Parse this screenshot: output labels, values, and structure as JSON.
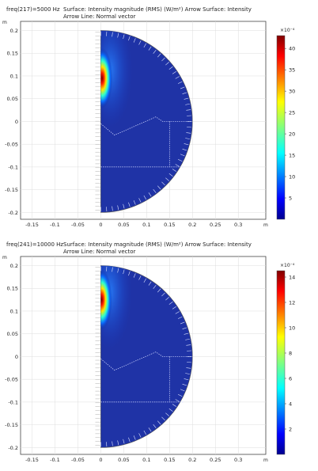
{
  "charts": [
    {
      "freq_label": "freq(217)=5000 Hz",
      "title_line1": "Surface: Intensity magnitude (RMS) (W/m²)  Arrow Surface: Intensity",
      "title_line2": "Arrow Line: Normal vector",
      "axis_unit_y": "m",
      "axis_unit_x": "m",
      "colorbar_exponent": "×10⁻⁴"
    },
    {
      "freq_label": "freq(241)=10000 Hz",
      "title_line1": "Surface: Intensity magnitude (RMS) (W/m²)  Arrow Surface: Intensity",
      "title_line2": "Arrow Line: Normal vector",
      "axis_unit_y": "m",
      "axis_unit_x": "m",
      "colorbar_exponent": "×10⁻⁴"
    }
  ],
  "chart_data": [
    {
      "type": "heatmap",
      "title": "Surface: Intensity magnitude (RMS) (W/m²)  Arrow Surface: Intensity  Arrow Line: Normal vector",
      "frequency": "freq(217)=5000 Hz",
      "xlabel": "m",
      "ylabel": "m",
      "xlim": [
        -0.175,
        0.36
      ],
      "ylim": [
        -0.215,
        0.22
      ],
      "x_ticks": [
        "-0.15",
        "-0.1",
        "-0.05",
        "0",
        "0.05",
        "0.1",
        "0.15",
        "0.2",
        "0.25",
        "0.3"
      ],
      "x_tick_values": [
        -0.15,
        -0.1,
        -0.05,
        0,
        0.05,
        0.1,
        0.15,
        0.2,
        0.25,
        0.3
      ],
      "y_ticks": [
        "0.2",
        "0.15",
        "0.1",
        "0.05",
        "0",
        "-0.05",
        "-0.1",
        "-0.15",
        "-0.2"
      ],
      "y_tick_values": [
        0.2,
        0.15,
        0.1,
        0.05,
        0,
        -0.05,
        -0.1,
        -0.15,
        -0.2
      ],
      "domain_radius": 0.2,
      "hotspot": {
        "x": 0.003,
        "y": 0.095,
        "peak": 43
      },
      "colorbar": {
        "min": 0,
        "max": 43,
        "ticks": [
          "40",
          "35",
          "30",
          "25",
          "20",
          "15",
          "10",
          "5"
        ],
        "tick_values": [
          40,
          35,
          30,
          25,
          20,
          15,
          10,
          5
        ],
        "exponent": "×10⁻⁴"
      },
      "colormap": "jet",
      "grid": true
    },
    {
      "type": "heatmap",
      "title": "Surface: Intensity magnitude (RMS) (W/m²)  Arrow Surface: Intensity  Arrow Line: Normal vector",
      "frequency": "freq(241)=10000 Hz",
      "xlabel": "m",
      "ylabel": "m",
      "xlim": [
        -0.175,
        0.36
      ],
      "ylim": [
        -0.215,
        0.22
      ],
      "x_ticks": [
        "-0.15",
        "-0.1",
        "-0.05",
        "0",
        "0.05",
        "0.1",
        "0.15",
        "0.2",
        "0.25",
        "0.3"
      ],
      "x_tick_values": [
        -0.15,
        -0.1,
        -0.05,
        0,
        0.05,
        0.1,
        0.15,
        0.2,
        0.25,
        0.3
      ],
      "y_ticks": [
        "0.2",
        "0.15",
        "0.1",
        "0.05",
        "0",
        "-0.05",
        "-0.1",
        "-0.15",
        "-0.2"
      ],
      "y_tick_values": [
        0.2,
        0.15,
        0.1,
        0.05,
        0,
        -0.05,
        -0.1,
        -0.15,
        -0.2
      ],
      "domain_radius": 0.2,
      "hotspot": {
        "x": 0.002,
        "y": 0.125,
        "peak": 14.5
      },
      "colorbar": {
        "min": 0,
        "max": 14.5,
        "ticks": [
          "14",
          "12",
          "10",
          "8",
          "6",
          "4",
          "2"
        ],
        "tick_values": [
          14,
          12,
          10,
          8,
          6,
          4,
          2
        ],
        "exponent": "×10⁻⁴"
      },
      "colormap": "jet",
      "grid": true
    }
  ]
}
